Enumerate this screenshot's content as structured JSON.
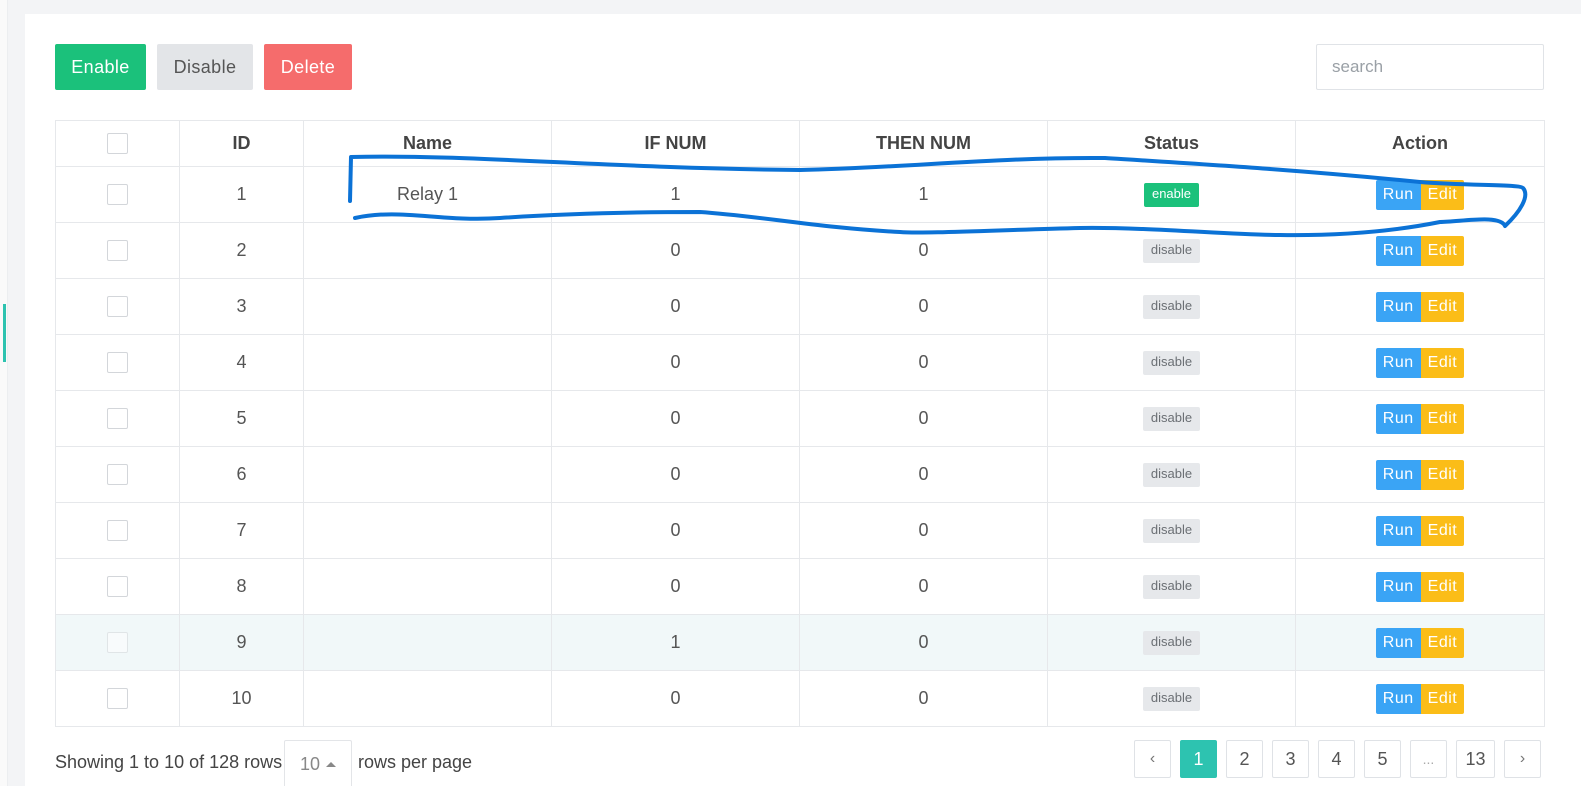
{
  "toolbar": {
    "enable_label": "Enable",
    "disable_label": "Disable",
    "delete_label": "Delete"
  },
  "search": {
    "placeholder": "search",
    "value": ""
  },
  "table": {
    "columns": [
      "",
      "ID",
      "Name",
      "IF NUM",
      "THEN NUM",
      "Status",
      "Action"
    ],
    "rows": [
      {
        "id": "1",
        "name": "Relay 1",
        "if_num": "1",
        "then_num": "1",
        "status": "enable"
      },
      {
        "id": "2",
        "name": "",
        "if_num": "0",
        "then_num": "0",
        "status": "disable"
      },
      {
        "id": "3",
        "name": "",
        "if_num": "0",
        "then_num": "0",
        "status": "disable"
      },
      {
        "id": "4",
        "name": "",
        "if_num": "0",
        "then_num": "0",
        "status": "disable"
      },
      {
        "id": "5",
        "name": "",
        "if_num": "0",
        "then_num": "0",
        "status": "disable"
      },
      {
        "id": "6",
        "name": "",
        "if_num": "0",
        "then_num": "0",
        "status": "disable"
      },
      {
        "id": "7",
        "name": "",
        "if_num": "0",
        "then_num": "0",
        "status": "disable"
      },
      {
        "id": "8",
        "name": "",
        "if_num": "0",
        "then_num": "0",
        "status": "disable"
      },
      {
        "id": "9",
        "name": "",
        "if_num": "1",
        "then_num": "0",
        "status": "disable"
      },
      {
        "id": "10",
        "name": "",
        "if_num": "0",
        "then_num": "0",
        "status": "disable"
      }
    ],
    "actions": {
      "run_label": "Run",
      "edit_label": "Edit"
    }
  },
  "footer": {
    "showing": "Showing 1 to 10 of 128 rows",
    "page_size": "10",
    "rows_per_page": "rows per page"
  },
  "pagination": {
    "prev": "‹",
    "pages": [
      "1",
      "2",
      "3",
      "4",
      "5",
      "...",
      "13"
    ],
    "current": "1",
    "next": "›"
  },
  "colors": {
    "enable_green": "#1bc17b",
    "delete_red": "#f56c6c",
    "run_blue": "#3aa4f5",
    "edit_yellow": "#fbbd18",
    "active_page_teal": "#2dc3b0",
    "annotation_blue": "#0b72d6"
  }
}
